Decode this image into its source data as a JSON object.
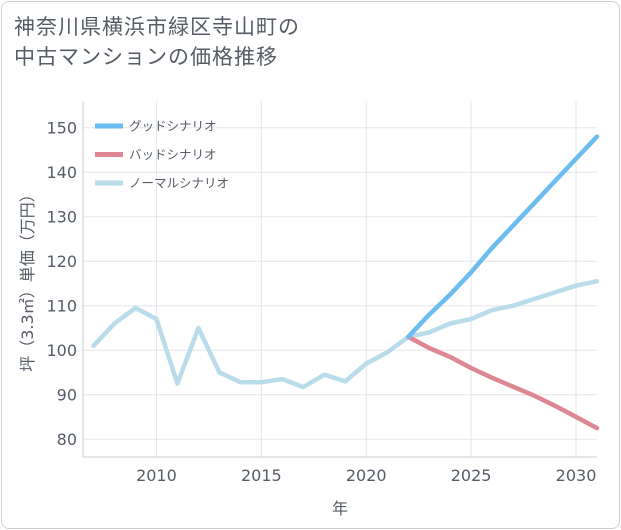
{
  "title": {
    "line1": "神奈川県横浜市緑区寺山町の",
    "line2": "中古マンションの価格推移"
  },
  "colors": {
    "good": "#6bbdf0",
    "bad": "#de8793",
    "normal": "#b9dceb",
    "grid": "#e3e6ea",
    "axis": "#555c66"
  },
  "chart_data": {
    "type": "line",
    "title": "神奈川県横浜市緑区寺山町の中古マンションの価格推移",
    "xlabel": "年",
    "ylabel": "坪（3.3㎡）単価（万円）",
    "xlim": [
      2006.5,
      2031
    ],
    "ylim": [
      76,
      156
    ],
    "xticks": [
      2010,
      2015,
      2020,
      2025,
      2030
    ],
    "yticks": [
      80,
      90,
      100,
      110,
      120,
      130,
      140,
      150
    ],
    "legend_position": "top-left",
    "series": [
      {
        "name": "グッドシナリオ",
        "key": "good",
        "x": [
          2022,
          2023,
          2024,
          2025,
          2026,
          2027,
          2028,
          2029,
          2030,
          2031
        ],
        "y": [
          103,
          108,
          112.5,
          117.5,
          123,
          128,
          133,
          138,
          143,
          148
        ]
      },
      {
        "name": "バッドシナリオ",
        "key": "bad",
        "x": [
          2022,
          2023,
          2024,
          2025,
          2026,
          2027,
          2028,
          2029,
          2030,
          2031
        ],
        "y": [
          103,
          100.5,
          98.5,
          96,
          93.8,
          91.8,
          89.8,
          87.5,
          85,
          82.5
        ]
      },
      {
        "name": "ノーマルシナリオ",
        "key": "normal",
        "x": [
          2007,
          2008,
          2009,
          2010,
          2011,
          2012,
          2013,
          2014,
          2015,
          2016,
          2017,
          2018,
          2019,
          2020,
          2021,
          2022,
          2023,
          2024,
          2025,
          2026,
          2027,
          2028,
          2029,
          2030,
          2031
        ],
        "y": [
          101,
          106,
          109.5,
          107,
          92.5,
          105,
          95,
          92.8,
          92.8,
          93.5,
          91.7,
          94.5,
          93,
          97,
          99.5,
          103,
          104,
          106,
          107,
          109,
          110,
          111.5,
          113,
          114.5,
          115.5
        ]
      }
    ]
  }
}
